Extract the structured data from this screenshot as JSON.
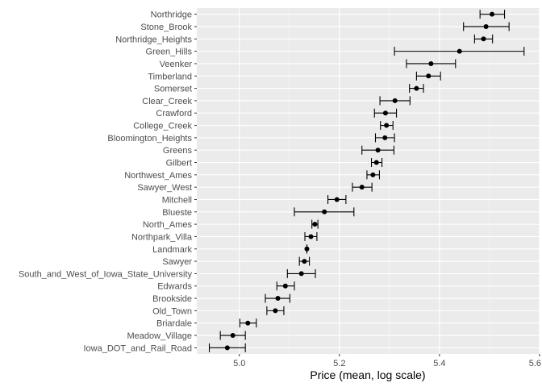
{
  "chart_data": {
    "type": "scatter",
    "xlabel": "Price (mean, log scale)",
    "ylabel": "",
    "xlim": [
      4.915,
      5.6
    ],
    "x_ticks": [
      5.0,
      5.2,
      5.4,
      5.6
    ],
    "x_tick_labels": [
      "5.0",
      "5.2",
      "5.4",
      "5.6"
    ],
    "grid": true,
    "panel_color": "#ebebeb",
    "point_color": "#000000",
    "error_bars": true,
    "categories": [
      "Northridge",
      "Stone_Brook",
      "Northridge_Heights",
      "Green_Hills",
      "Veenker",
      "Timberland",
      "Somerset",
      "Clear_Creek",
      "Crawford",
      "College_Creek",
      "Bloomington_Heights",
      "Greens",
      "Gilbert",
      "Northwest_Ames",
      "Sawyer_West",
      "Mitchell",
      "Blueste",
      "North_Ames",
      "Northpark_Villa",
      "Landmark",
      "Sawyer",
      "South_and_West_of_Iowa_State_University",
      "Edwards",
      "Brookside",
      "Old_Town",
      "Briardale",
      "Meadow_Village",
      "Iowa_DOT_and_Rail_Road"
    ],
    "mean": [
      5.505,
      5.493,
      5.488,
      5.44,
      5.383,
      5.378,
      5.354,
      5.311,
      5.292,
      5.294,
      5.291,
      5.277,
      5.274,
      5.267,
      5.245,
      5.195,
      5.17,
      5.151,
      5.143,
      5.135,
      5.13,
      5.124,
      5.092,
      5.077,
      5.072,
      5.017,
      4.987,
      4.976
    ],
    "lower": [
      5.481,
      5.448,
      5.47,
      5.31,
      5.334,
      5.354,
      5.34,
      5.281,
      5.27,
      5.282,
      5.272,
      5.245,
      5.264,
      5.255,
      5.226,
      5.177,
      5.11,
      5.145,
      5.131,
      5.135,
      5.12,
      5.096,
      5.075,
      5.052,
      5.055,
      5.001,
      4.962,
      4.94
    ],
    "upper": [
      5.53,
      5.539,
      5.506,
      5.569,
      5.432,
      5.402,
      5.368,
      5.341,
      5.314,
      5.307,
      5.31,
      5.309,
      5.285,
      5.28,
      5.265,
      5.213,
      5.229,
      5.157,
      5.155,
      5.135,
      5.14,
      5.152,
      5.11,
      5.101,
      5.089,
      5.034,
      5.012,
      5.012
    ]
  }
}
